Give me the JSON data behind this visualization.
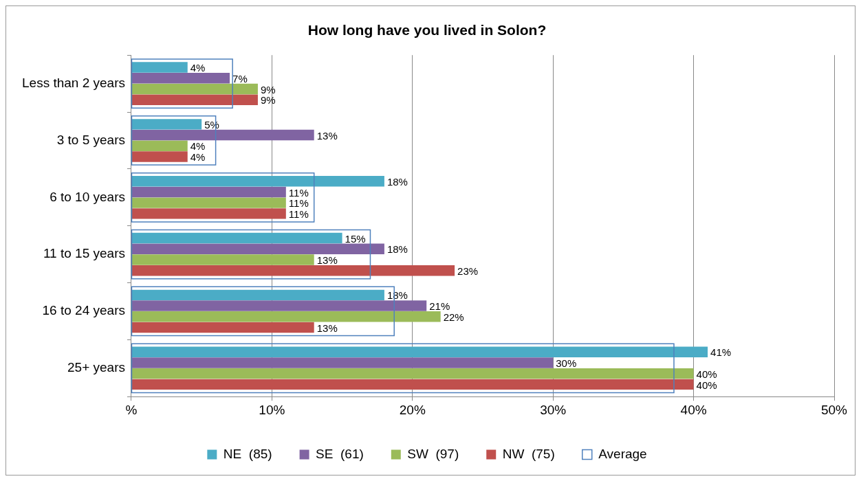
{
  "chart_data": {
    "type": "bar",
    "orientation": "horizontal",
    "title": "How long have you lived in Solon?",
    "categories": [
      "Less than 2 years",
      "3 to 5 years",
      "6 to 10 years",
      "11 to 15 years",
      "16 to 24 years",
      "25+ years"
    ],
    "series": [
      {
        "name": "NE  (85)",
        "color": "#4bacc6",
        "values": [
          4,
          5,
          18,
          15,
          18,
          41
        ],
        "value_labels": [
          "4%",
          "5%",
          "18%",
          "15%",
          "18%",
          "41%"
        ]
      },
      {
        "name": "SE  (61)",
        "color": "#8064a2",
        "values": [
          7,
          13,
          11,
          18,
          21,
          30
        ],
        "value_labels": [
          "7%",
          "13%",
          "11%",
          "18%",
          "21%",
          "30%"
        ]
      },
      {
        "name": "SW  (97)",
        "color": "#9bbb59",
        "values": [
          9,
          4,
          11,
          13,
          22,
          40
        ],
        "value_labels": [
          "9%",
          "4%",
          "11%",
          "13%",
          "22%",
          "40%"
        ]
      },
      {
        "name": "NW  (75)",
        "color": "#c0504d",
        "values": [
          9,
          4,
          11,
          23,
          13,
          40
        ],
        "value_labels": [
          "9%",
          "4%",
          "11%",
          "23%",
          "13%",
          "40%"
        ]
      },
      {
        "name": "Average",
        "color": "#4f81bd",
        "line_style": "solid",
        "values": [
          7.2,
          6.0,
          13.0,
          17.0,
          18.7,
          38.6
        ]
      }
    ],
    "xlim": [
      0,
      50
    ],
    "xticks": [
      {
        "value": 0,
        "label": "%"
      },
      {
        "value": 10,
        "label": "10%"
      },
      {
        "value": 20,
        "label": "20%"
      },
      {
        "value": 30,
        "label": "30%"
      },
      {
        "value": 40,
        "label": "40%"
      },
      {
        "value": 50,
        "label": "50%"
      }
    ],
    "grid": "x",
    "legend": "bottom"
  }
}
